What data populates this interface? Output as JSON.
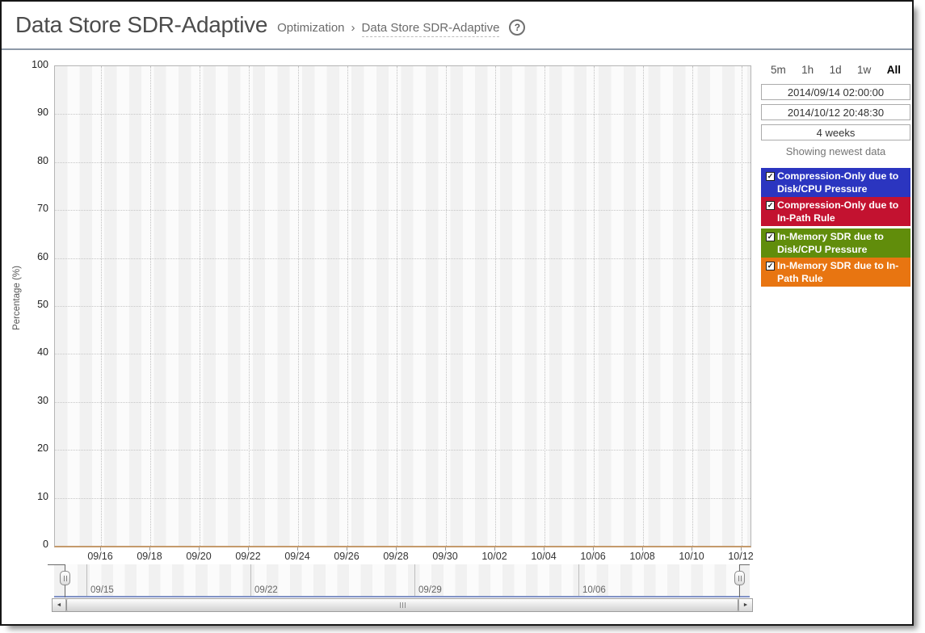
{
  "header": {
    "title": "Data Store SDR-Adaptive",
    "breadcrumb": {
      "parent": "Optimization",
      "separator": "›",
      "current": "Data Store SDR-Adaptive"
    }
  },
  "icons": {
    "help": "?",
    "checkbox_checked": "✓",
    "scroll_left": "◄",
    "scroll_right": "►"
  },
  "time_controls": {
    "range_buttons": [
      {
        "label": "5m",
        "active": false
      },
      {
        "label": "1h",
        "active": false
      },
      {
        "label": "1d",
        "active": false
      },
      {
        "label": "1w",
        "active": false
      },
      {
        "label": "All",
        "active": true
      }
    ],
    "start_time": "2014/09/14 02:00:00",
    "end_time": "2014/10/12 20:48:30",
    "duration": "4 weeks",
    "status_text": "Showing newest data"
  },
  "legend": {
    "items": [
      {
        "label": "Compression-Only due to Disk/CPU Pressure",
        "color": "#2b35c0",
        "checked": true
      },
      {
        "label": "Compression-Only due to In-Path Rule",
        "color": "#c31230",
        "checked": true
      },
      {
        "label": "In-Memory SDR due to Disk/CPU Pressure",
        "color": "#618d0b",
        "checked": true
      },
      {
        "label": "In-Memory SDR due to In-Path Rule",
        "color": "#e87511",
        "checked": true
      }
    ]
  },
  "chart_data": {
    "type": "area",
    "title": "Data Store SDR-Adaptive",
    "xlabel": "",
    "ylabel": "Percentage (%)",
    "ylim": [
      0,
      100
    ],
    "y_ticks": [
      0,
      10,
      20,
      30,
      40,
      50,
      60,
      70,
      80,
      90,
      100
    ],
    "x_ticks": [
      "09/16",
      "09/18",
      "09/20",
      "09/22",
      "09/24",
      "09/26",
      "09/28",
      "09/30",
      "10/02",
      "10/04",
      "10/06",
      "10/08",
      "10/10",
      "10/12"
    ],
    "x_range": {
      "start": "2014/09/14 02:00:00",
      "end": "2014/10/12 20:48:30"
    },
    "grid": true,
    "legend_position": "right",
    "series": [
      {
        "name": "Compression-Only due to Disk/CPU Pressure",
        "color": "#2b35c0",
        "values": []
      },
      {
        "name": "Compression-Only due to In-Path Rule",
        "color": "#c31230",
        "values": []
      },
      {
        "name": "In-Memory SDR due to Disk/CPU Pressure",
        "color": "#618d0b",
        "values": []
      },
      {
        "name": "In-Memory SDR due to In-Path Rule",
        "color": "#e87511",
        "values": []
      }
    ]
  },
  "navigator": {
    "week_labels": [
      "09/15",
      "09/22",
      "09/29",
      "10/06"
    ]
  }
}
